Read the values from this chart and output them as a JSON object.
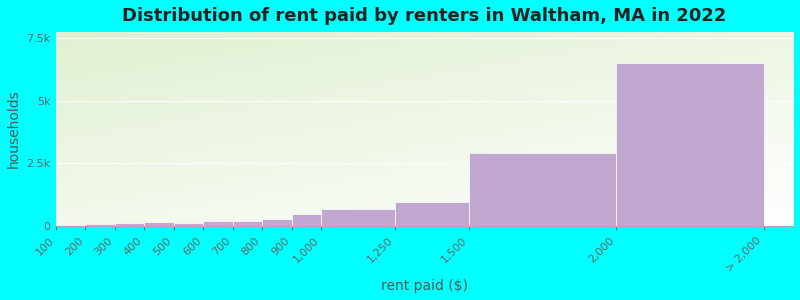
{
  "title": "Distribution of rent paid by renters in Waltham, MA in 2022",
  "xlabel": "rent paid ($)",
  "ylabel": "households",
  "bar_lefts": [
    100,
    200,
    300,
    400,
    500,
    600,
    700,
    800,
    900,
    1000,
    1250,
    1500,
    2000
  ],
  "bar_widths": [
    100,
    100,
    100,
    100,
    100,
    100,
    100,
    100,
    100,
    250,
    250,
    500,
    500
  ],
  "bar_values": [
    30,
    100,
    130,
    160,
    110,
    200,
    210,
    280,
    500,
    700,
    950,
    2900,
    6500
  ],
  "xtick_positions": [
    100,
    200,
    300,
    400,
    500,
    600,
    700,
    800,
    900,
    1000,
    1250,
    1500,
    2000,
    2500
  ],
  "xtick_labels": [
    "100",
    "200",
    "300",
    "400",
    "500",
    "600",
    "700",
    "800",
    "900",
    "1,000",
    "1,250",
    "1,500",
    "2,000",
    "> 2,000"
  ],
  "bar_color": "#c0a8d0",
  "background_color": "#00ffff",
  "plot_bg_color1": "#d8efcc",
  "plot_bg_color2": "#f5f5f0",
  "xlim": [
    100,
    2600
  ],
  "ylim": [
    0,
    7750
  ],
  "yticks": [
    0,
    2500,
    5000,
    7500
  ],
  "ytick_labels": [
    "0",
    "2.5k",
    "5k",
    "7.5k"
  ],
  "title_fontsize": 13,
  "axis_label_fontsize": 10,
  "tick_fontsize": 8
}
